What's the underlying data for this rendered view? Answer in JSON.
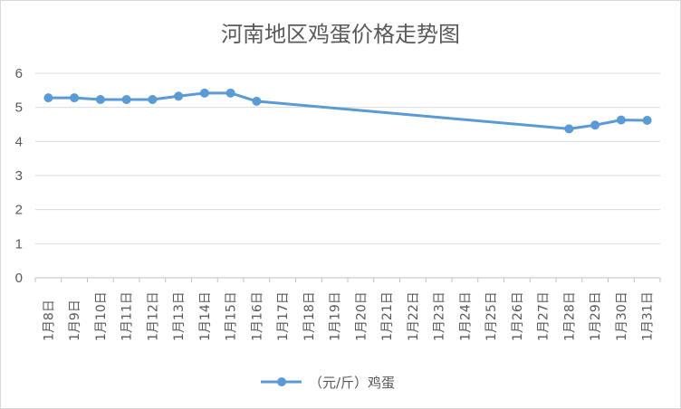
{
  "chart_data": {
    "type": "line",
    "title": "河南地区鸡蛋价格走势图",
    "categories": [
      "1月8日",
      "1月9日",
      "1月10日",
      "1月11日",
      "1月12日",
      "1月13日",
      "1月14日",
      "1月15日",
      "1月16日",
      "1月17日",
      "1月18日",
      "1月19日",
      "1月20日",
      "1月21日",
      "1月22日",
      "1月23日",
      "1月24日",
      "1月25日",
      "1月26日",
      "1月27日",
      "1月28日",
      "1月29日",
      "1月30日",
      "1月31日"
    ],
    "series": [
      {
        "name": "（元/斤）鸡蛋",
        "color": "#5b9bd5",
        "values": [
          5.28,
          5.28,
          5.23,
          5.23,
          5.23,
          5.33,
          5.42,
          5.42,
          5.18,
          null,
          null,
          null,
          null,
          null,
          null,
          null,
          null,
          null,
          null,
          null,
          4.37,
          4.48,
          4.63,
          4.62
        ]
      }
    ],
    "yticks": [
      "0",
      "1",
      "2",
      "3",
      "4",
      "5",
      "6"
    ],
    "ylim": [
      0,
      6
    ],
    "grid": true,
    "legend": "bottom"
  }
}
